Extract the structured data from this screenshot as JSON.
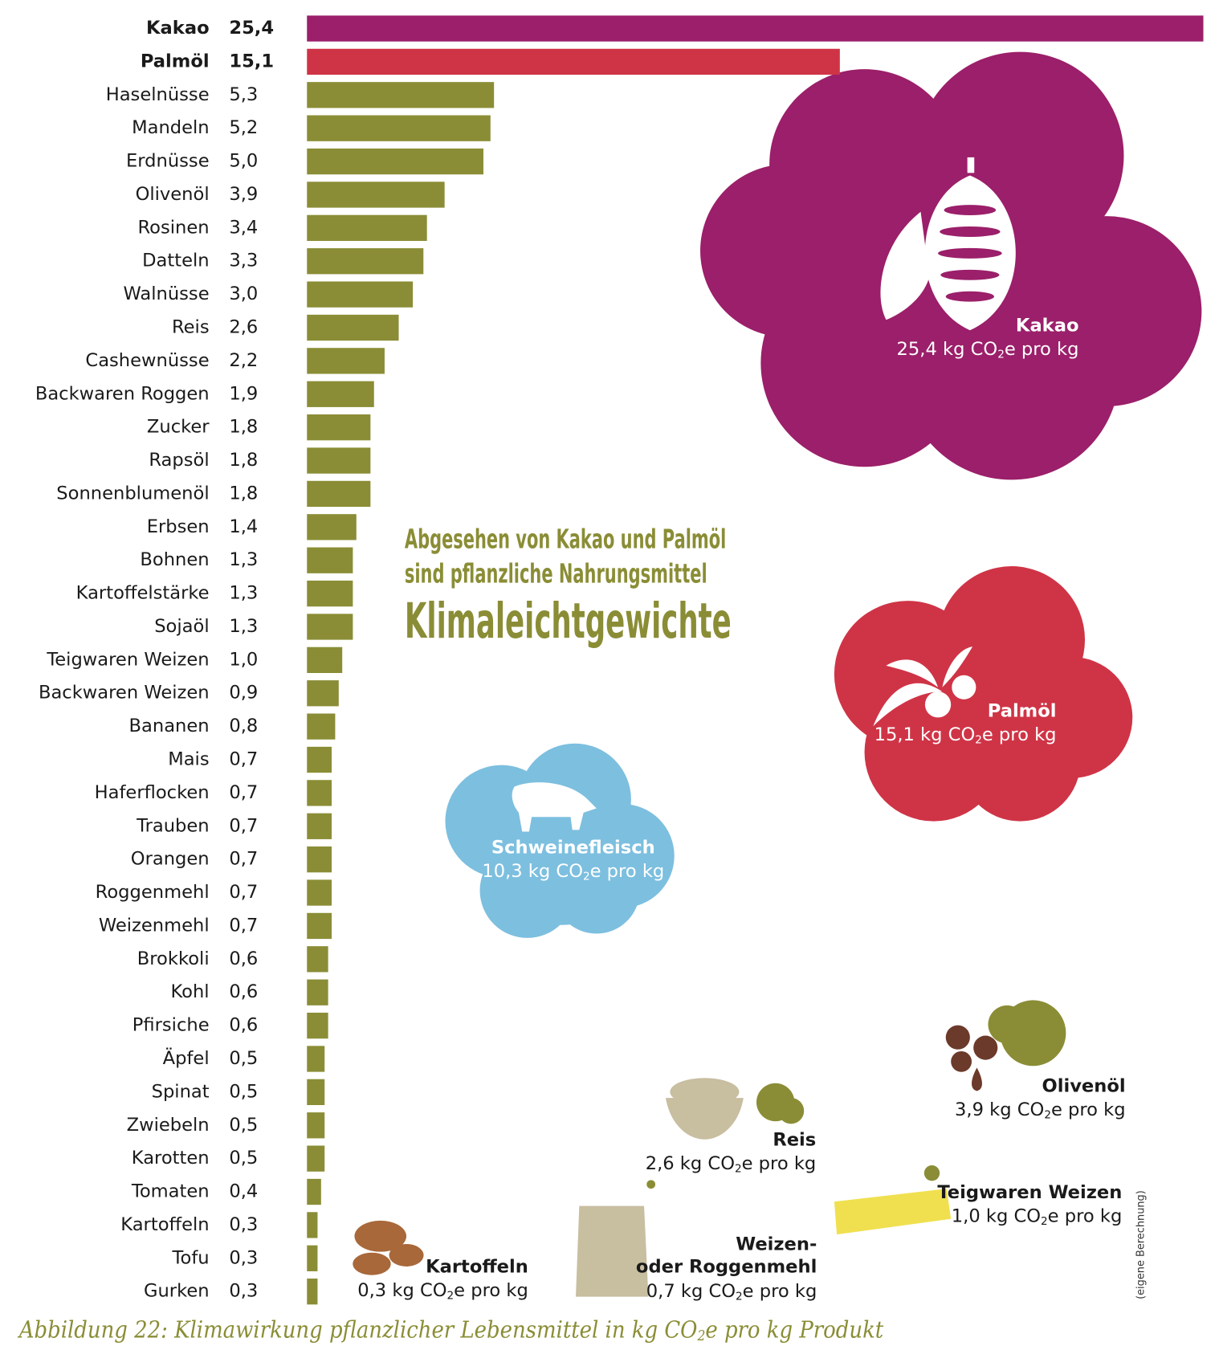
{
  "chart_data": {
    "type": "bar",
    "orientation": "horizontal",
    "categories": [
      "Kakao",
      "Palmöl",
      "Haselnüsse",
      "Mandeln",
      "Erdnüsse",
      "Olivenöl",
      "Rosinen",
      "Datteln",
      "Walnüsse",
      "Reis",
      "Cashewnüsse",
      "Backwaren Roggen",
      "Zucker",
      "Rapsöl",
      "Sonnenblumenöl",
      "Erbsen",
      "Bohnen",
      "Kartoffelstärke",
      "Sojaöl",
      "Teigwaren Weizen",
      "Backwaren Weizen",
      "Bananen",
      "Mais",
      "Haferflocken",
      "Trauben",
      "Orangen",
      "Roggenmehl",
      "Weizenmehl",
      "Brokkoli",
      "Kohl",
      "Pfirsiche",
      "Äpfel",
      "Spinat",
      "Zwiebeln",
      "Karotten",
      "Tomaten",
      "Kartoffeln",
      "Tofu",
      "Gurken"
    ],
    "values": [
      25.4,
      15.1,
      5.3,
      5.2,
      5.0,
      3.9,
      3.4,
      3.3,
      3.0,
      2.6,
      2.2,
      1.9,
      1.8,
      1.8,
      1.8,
      1.4,
      1.3,
      1.3,
      1.3,
      1.0,
      0.9,
      0.8,
      0.7,
      0.7,
      0.7,
      0.7,
      0.7,
      0.7,
      0.6,
      0.6,
      0.6,
      0.5,
      0.5,
      0.5,
      0.5,
      0.4,
      0.3,
      0.3,
      0.3
    ],
    "value_labels": [
      "25,4",
      "15,1",
      "5,3",
      "5,2",
      "5,0",
      "3,9",
      "3,4",
      "3,3",
      "3,0",
      "2,6",
      "2,2",
      "1,9",
      "1,8",
      "1,8",
      "1,8",
      "1,4",
      "1,3",
      "1,3",
      "1,3",
      "1,0",
      "0,9",
      "0,8",
      "0,7",
      "0,7",
      "0,7",
      "0,7",
      "0,7",
      "0,7",
      "0,6",
      "0,6",
      "0,6",
      "0,5",
      "0,5",
      "0,5",
      "0,5",
      "0,4",
      "0,3",
      "0,3",
      "0,3"
    ],
    "color": "#8a8d35",
    "colors": [
      "#9b1f6a",
      "#cf3446",
      "#8a8d35",
      "#8a8d35",
      "#8a8d35",
      "#8a8d35",
      "#8a8d35",
      "#8a8d35",
      "#8a8d35",
      "#8a8d35",
      "#8a8d35",
      "#8a8d35",
      "#8a8d35",
      "#8a8d35",
      "#8a8d35",
      "#8a8d35",
      "#8a8d35",
      "#8a8d35",
      "#8a8d35",
      "#8a8d35",
      "#8a8d35",
      "#8a8d35",
      "#8a8d35",
      "#8a8d35",
      "#8a8d35",
      "#8a8d35",
      "#8a8d35",
      "#8a8d35",
      "#8a8d35",
      "#8a8d35",
      "#8a8d35",
      "#8a8d35",
      "#8a8d35",
      "#8a8d35",
      "#8a8d35",
      "#8a8d35",
      "#8a8d35",
      "#8a8d35",
      "#8a8d35"
    ],
    "xlim": [
      0,
      25.4
    ],
    "headline": [
      "Abgesehen von Kakao und Palmöl",
      "sind pflanzliche Nahrungsmittel",
      "Klimaleichtgewichte"
    ],
    "annotations": [
      {
        "title": [
          "Kakao"
        ],
        "detail": [
          "25,4 kg CO",
          "2",
          "e pro kg"
        ]
      },
      {
        "title": [
          "Palmöl"
        ],
        "detail": [
          "15,1 kg CO",
          "2",
          "e pro kg"
        ]
      },
      {
        "title": [
          "Schweinefleisch"
        ],
        "detail": [
          "10,3 kg CO",
          "2",
          "e pro kg"
        ]
      },
      {
        "title": [
          "Olivenöl"
        ],
        "detail": [
          "3,9 kg CO",
          "2",
          "e pro kg"
        ]
      },
      {
        "title": [
          "Reis"
        ],
        "detail": [
          "2,6 kg CO",
          "2",
          "e pro kg"
        ]
      },
      {
        "title": [
          "Teigwaren Weizen"
        ],
        "detail": [
          "1,0 kg CO",
          "2",
          "e pro kg"
        ]
      },
      {
        "title": [
          "Weizen-",
          "oder Roggenmehl"
        ],
        "detail": [
          "0,7 kg CO",
          "2",
          "e pro kg"
        ]
      },
      {
        "title": [
          "Kartoffeln"
        ],
        "detail": [
          "0,3 kg CO",
          "2",
          "e pro kg"
        ]
      }
    ],
    "source_note": "(eigene Berechnung)",
    "caption": [
      "Abbildung 22: Klimawirkung pflanzlicher Lebensmittel in kg CO",
      "2",
      "e pro kg Produkt"
    ]
  }
}
